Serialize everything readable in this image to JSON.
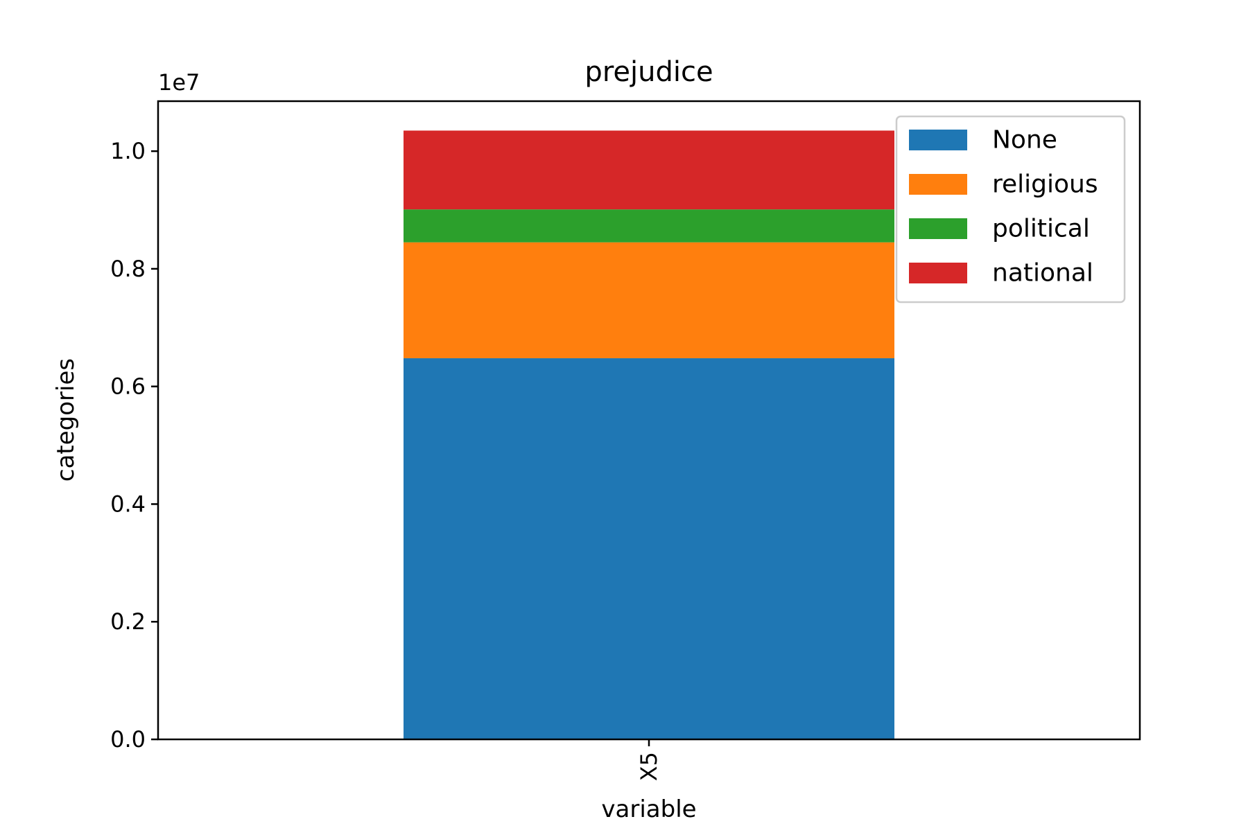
{
  "chart_data": {
    "type": "bar",
    "stacked": true,
    "title": "prejudice",
    "xlabel": "variable",
    "ylabel": "categories",
    "categories": [
      "X5"
    ],
    "y_offset_label": "1e7",
    "y_tick_labels": [
      "0.0",
      "0.2",
      "0.4",
      "0.6",
      "0.8",
      "1.0"
    ],
    "y_ticks": [
      0,
      2000000,
      4000000,
      6000000,
      8000000,
      10000000
    ],
    "ylim": [
      0,
      10850000
    ],
    "series": [
      {
        "name": "None",
        "values": [
          6480000
        ],
        "color": "#1f77b4"
      },
      {
        "name": "religious",
        "values": [
          1970000
        ],
        "color": "#ff7f0e"
      },
      {
        "name": "political",
        "values": [
          560000
        ],
        "color": "#2ca02c"
      },
      {
        "name": "national",
        "values": [
          1340000
        ],
        "color": "#d62728"
      }
    ],
    "legend_position": "top-right",
    "grid": false,
    "x_tick_rotation": "vertical"
  }
}
